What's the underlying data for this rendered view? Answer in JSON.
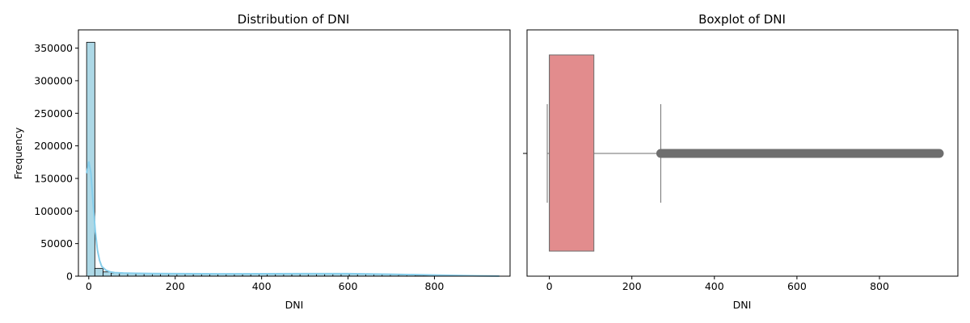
{
  "chart_data": [
    {
      "type": "histogram",
      "title": "Distribution of DNI",
      "xlabel": "DNI",
      "ylabel": "Frequency",
      "xlim": [
        -24,
        975
      ],
      "ylim": [
        0,
        378000
      ],
      "xticks": [
        0,
        200,
        400,
        600,
        800
      ],
      "yticks": [
        0,
        50000,
        100000,
        150000,
        200000,
        250000,
        300000,
        350000
      ],
      "bin_width": 19,
      "bin_start": -5,
      "counts": [
        359000,
        12000,
        6500,
        5000,
        4500,
        4200,
        4000,
        3900,
        3800,
        3700,
        3650,
        3600,
        3550,
        3500,
        3450,
        3400,
        3400,
        3400,
        3450,
        3500,
        3550,
        3600,
        3700,
        3800,
        3850,
        3900,
        3950,
        4000,
        4000,
        3950,
        3900,
        3800,
        3600,
        3400,
        3200,
        2900,
        2600,
        2300,
        2000,
        1700,
        1400,
        1100,
        800,
        600,
        400,
        250,
        150,
        80,
        40,
        20
      ],
      "kde": {
        "x": [
          -5,
          0,
          5,
          10,
          15,
          20,
          25,
          30,
          40,
          50,
          60,
          80,
          100,
          150,
          200,
          300,
          400,
          500,
          550,
          600,
          700,
          800,
          900,
          950
        ],
        "y": [
          158000,
          176000,
          158000,
          112000,
          70000,
          40000,
          24000,
          15000,
          9000,
          6500,
          5500,
          4800,
          4500,
          4000,
          3800,
          3600,
          3700,
          3900,
          3950,
          3800,
          3000,
          1700,
          500,
          200
        ]
      },
      "colors": {
        "fill": "#add8e6",
        "edge": "#000000",
        "kde": "#87ceeb"
      }
    },
    {
      "type": "boxplot",
      "title": "Boxplot of DNI",
      "xlabel": "DNI",
      "xlim": [
        -54,
        990
      ],
      "xticks": [
        0,
        200,
        400,
        600,
        800
      ],
      "ytick_labels": [
        ""
      ],
      "whisker_low": -5,
      "q1": 0,
      "median": 0,
      "q3": 108,
      "whisker_high": 270,
      "outlier_min": 270,
      "outlier_max": 945,
      "colors": {
        "box": "#e28c8d",
        "line": "#6e6e6e"
      }
    }
  ]
}
